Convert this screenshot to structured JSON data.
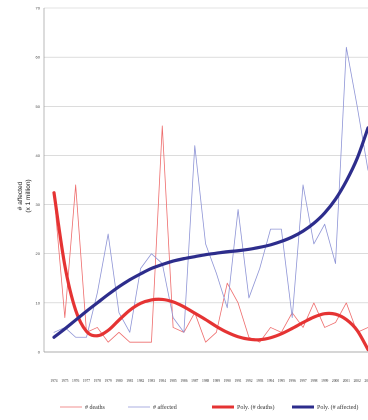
{
  "chart_data": {
    "type": "line",
    "ylabel": "# affected",
    "ylabel_unit": "(x 1 million)",
    "ylim": [
      0,
      70
    ],
    "yticks": [
      0,
      10,
      20,
      30,
      40,
      50,
      60,
      70
    ],
    "grid": true,
    "legend_position": "bottom",
    "x": [
      1974,
      1975,
      1976,
      1977,
      1978,
      1979,
      1980,
      1981,
      1982,
      1983,
      1984,
      1985,
      1986,
      1987,
      1988,
      1989,
      1990,
      1991,
      1992,
      1993,
      1994,
      1995,
      1996,
      1997,
      1998,
      1999,
      2000,
      2001,
      2002,
      2003
    ],
    "x_tick_labels": [
      "1974",
      "1975",
      "1976",
      "1977",
      "1978",
      "1979",
      "1980",
      "1981",
      "1982",
      "1983",
      "1984",
      "1985",
      "1986",
      "1987",
      "1988",
      "1989",
      "1990",
      "1991",
      "1992",
      "1993",
      "1994",
      "1995",
      "1996",
      "1997",
      "1998",
      "1999",
      "2000",
      "2001",
      "2002",
      "2003"
    ],
    "series": [
      {
        "name": "# deaths",
        "color": "#ee6d6d",
        "style": "thin",
        "values": [
          32,
          7,
          34,
          4,
          5,
          2,
          4,
          2,
          2,
          2,
          46,
          5,
          4,
          8,
          2,
          4,
          14,
          10,
          3,
          2,
          5,
          4,
          8,
          5,
          10,
          5,
          6,
          10,
          4,
          5
        ]
      },
      {
        "name": "# affected",
        "color": "#8f95d6",
        "style": "thin",
        "values": [
          4,
          5,
          3,
          3,
          12,
          24,
          8,
          4,
          17,
          20,
          18,
          7,
          4,
          42,
          22,
          16,
          9,
          29,
          11,
          17,
          25,
          25,
          7,
          34,
          22,
          26,
          18,
          62,
          50,
          37
        ]
      },
      {
        "name": "Poly. (# deaths)",
        "color": "#e53333",
        "style": "thick",
        "values": [
          32.4,
          17.6,
          8.5,
          4.2,
          3.3,
          4.4,
          6.5,
          8.5,
          9.9,
          10.6,
          10.7,
          10.2,
          9.2,
          7.9,
          6.6,
          5.2,
          4.0,
          3.1,
          2.6,
          2.5,
          2.9,
          3.7,
          4.8,
          6.0,
          7.1,
          7.8,
          7.7,
          6.6,
          4.4,
          0.5
        ]
      },
      {
        "name": "Poly. (# affected)",
        "color": "#2d2d8c",
        "style": "thick",
        "values": [
          3.0,
          4.7,
          6.5,
          8.3,
          10.0,
          11.7,
          13.3,
          14.7,
          15.9,
          17.0,
          17.8,
          18.5,
          19.0,
          19.4,
          19.8,
          20.1,
          20.4,
          20.6,
          20.9,
          21.3,
          21.8,
          22.5,
          23.4,
          24.6,
          26.2,
          28.3,
          31.1,
          34.8,
          39.4,
          45.6
        ]
      }
    ],
    "legend": [
      "# deaths",
      "# affected",
      "Poly. (# deaths)",
      "Poly. (# affected)"
    ]
  }
}
